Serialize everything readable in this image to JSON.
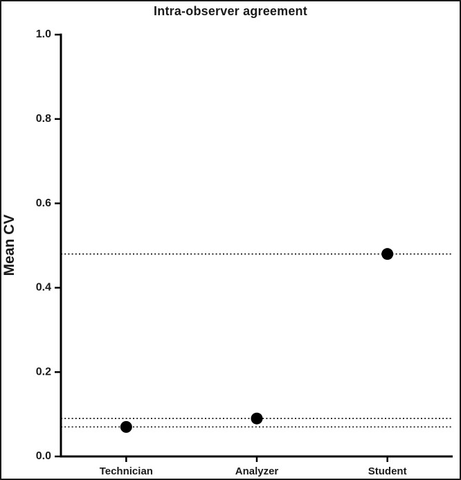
{
  "figure": {
    "title": "Intra-observer agreement",
    "ylabel": "Mean CV"
  },
  "chart_data": {
    "type": "scatter",
    "title": "Intra-observer agreement",
    "xlabel": "",
    "ylabel": "Mean CV",
    "categories": [
      "Technician",
      "Analyzer",
      "Student"
    ],
    "values": [
      0.07,
      0.09,
      0.48
    ],
    "reference_lines": [
      0.07,
      0.09,
      0.48
    ],
    "reference_line_style": "dotted",
    "ylim": [
      0.0,
      1.0
    ],
    "yticks": [
      0.0,
      0.2,
      0.4,
      0.6,
      0.8,
      1.0
    ],
    "ytick_labels": [
      "0.0",
      "0.2",
      "0.4",
      "0.6",
      "0.8",
      "1.0"
    ],
    "grid": false,
    "legend": "none",
    "marker": "circle",
    "marker_color": "#000000",
    "axis_color": "#000000",
    "background_color": "#ffffff"
  }
}
